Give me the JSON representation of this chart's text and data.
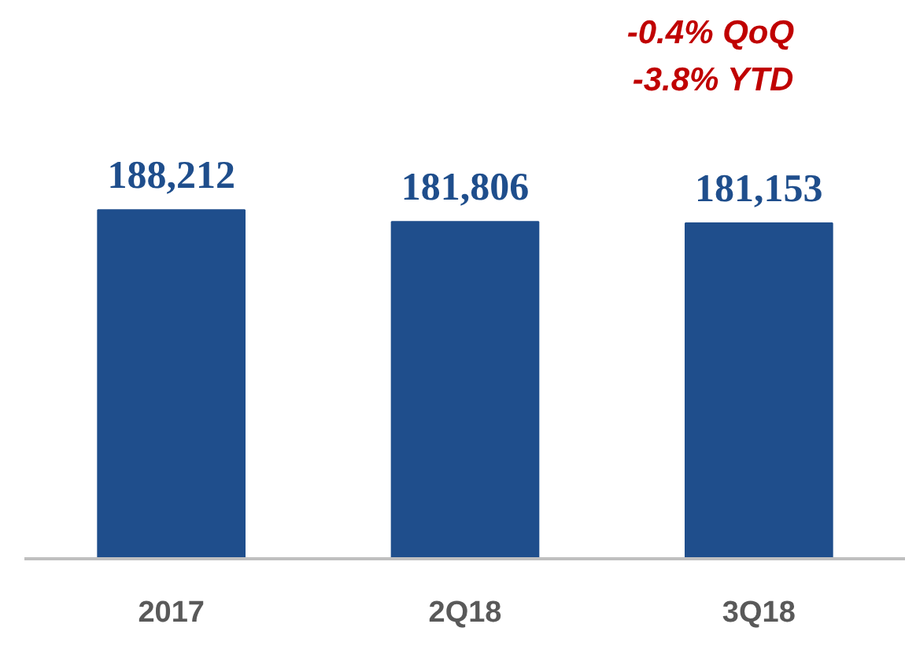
{
  "chart_data": {
    "type": "bar",
    "categories": [
      "2017",
      "2Q18",
      "3Q18"
    ],
    "values": [
      188212,
      181806,
      181153
    ],
    "color": "#1f4e8c",
    "data_labels": true,
    "value_labels": [
      "188,212",
      "181,806",
      "181,153"
    ],
    "annotations": [
      "-0.4% QoQ",
      "-3.8% YTD"
    ]
  }
}
